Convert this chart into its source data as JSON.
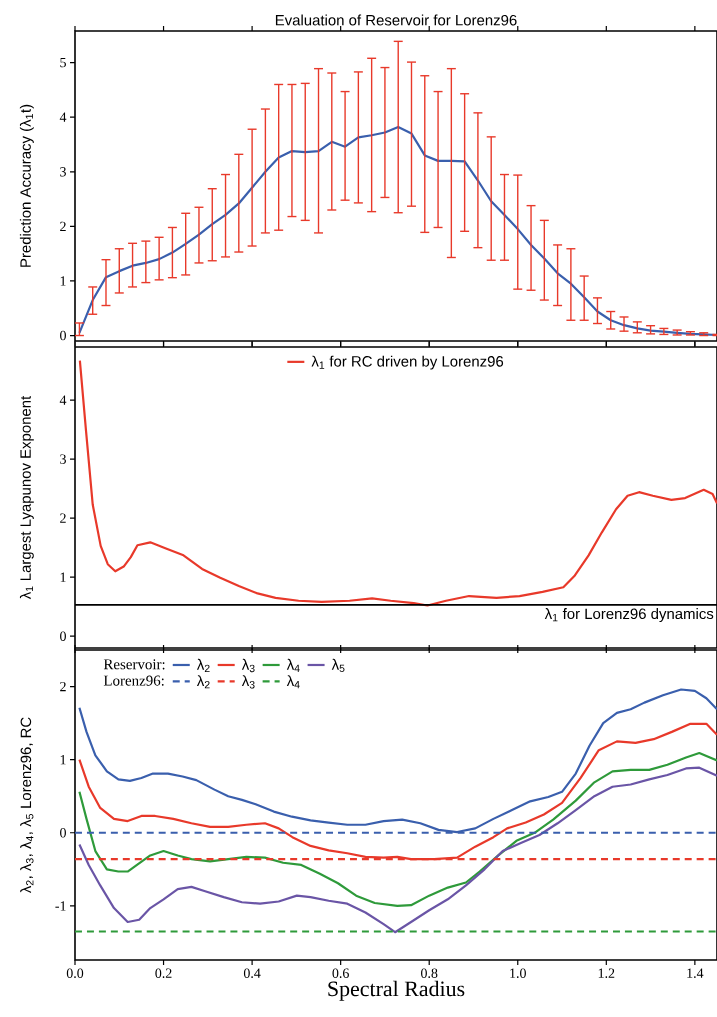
{
  "chart_data": [
    {
      "type": "line",
      "title": "Evaluation of Reservoir for Lorenz96",
      "ylabel": "Prediction Accuracy (λ$_{1}$t)",
      "x": [
        0.01,
        0.04,
        0.07,
        0.1,
        0.13,
        0.16,
        0.19,
        0.22,
        0.25,
        0.28,
        0.31,
        0.34,
        0.37,
        0.4,
        0.43,
        0.46,
        0.49,
        0.52,
        0.55,
        0.58,
        0.61,
        0.64,
        0.67,
        0.7,
        0.73,
        0.76,
        0.79,
        0.82,
        0.85,
        0.88,
        0.91,
        0.94,
        0.97,
        1.0,
        1.03,
        1.06,
        1.09,
        1.12,
        1.15,
        1.18,
        1.21,
        1.24,
        1.27,
        1.3,
        1.33,
        1.36,
        1.39,
        1.42,
        1.45
      ],
      "series": [
        {
          "color": "#3a5fad",
          "values": [
            0.05,
            0.65,
            1.07,
            1.18,
            1.28,
            1.33,
            1.4,
            1.52,
            1.68,
            1.85,
            2.04,
            2.21,
            2.42,
            2.71,
            3.0,
            3.26,
            3.38,
            3.36,
            3.38,
            3.55,
            3.46,
            3.63,
            3.67,
            3.72,
            3.82,
            3.7,
            3.3,
            3.2,
            3.2,
            3.19,
            2.84,
            2.46,
            2.21,
            1.95,
            1.66,
            1.41,
            1.14,
            0.95,
            0.7,
            0.44,
            0.28,
            0.19,
            0.13,
            0.09,
            0.07,
            0.05,
            0.03,
            0.02,
            0.01
          ],
          "errors": [
            [
              0.0,
              0.23
            ],
            [
              0.39,
              0.89
            ],
            [
              0.55,
              1.39
            ],
            [
              0.78,
              1.59
            ],
            [
              0.89,
              1.69
            ],
            [
              0.97,
              1.73
            ],
            [
              1.02,
              1.8
            ],
            [
              1.06,
              1.98
            ],
            [
              1.11,
              2.24
            ],
            [
              1.33,
              2.35
            ],
            [
              1.37,
              2.69
            ],
            [
              1.44,
              2.95
            ],
            [
              1.53,
              3.32
            ],
            [
              1.64,
              3.78
            ],
            [
              1.88,
              4.15
            ],
            [
              1.93,
              4.6
            ],
            [
              2.18,
              4.6
            ],
            [
              2.11,
              4.62
            ],
            [
              1.88,
              4.89
            ],
            [
              2.3,
              4.81
            ],
            [
              2.48,
              4.47
            ],
            [
              2.43,
              4.83
            ],
            [
              2.27,
              5.08
            ],
            [
              2.53,
              4.91
            ],
            [
              2.25,
              5.39
            ],
            [
              2.37,
              5.01
            ],
            [
              1.89,
              4.76
            ],
            [
              1.98,
              4.47
            ],
            [
              1.43,
              4.89
            ],
            [
              1.91,
              4.43
            ],
            [
              1.61,
              4.08
            ],
            [
              1.38,
              3.64
            ],
            [
              1.38,
              2.95
            ],
            [
              0.85,
              2.94
            ],
            [
              0.83,
              2.38
            ],
            [
              0.65,
              2.11
            ],
            [
              0.55,
              1.66
            ],
            [
              0.28,
              1.59
            ],
            [
              0.28,
              1.09
            ],
            [
              0.22,
              0.69
            ],
            [
              0.12,
              0.44
            ],
            [
              0.08,
              0.34
            ],
            [
              0.05,
              0.25
            ],
            [
              0.03,
              0.18
            ],
            [
              0.02,
              0.13
            ],
            [
              0.01,
              0.1
            ],
            [
              0.01,
              0.07
            ],
            [
              0.0,
              0.05
            ],
            [
              0.0,
              0.02
            ]
          ]
        }
      ],
      "xlim": [
        0,
        1.45
      ],
      "ylim": [
        -0.1,
        5.58
      ],
      "xticks": [
        0,
        0.2,
        0.4,
        0.6,
        0.8,
        1,
        1.2,
        1.4
      ],
      "yticks": [
        0,
        1,
        2,
        3,
        4,
        5
      ],
      "tick_labels": "y"
    },
    {
      "type": "line",
      "ylabel": "λ$_{1}$ Largest Lyapunov Exponent",
      "series": [
        {
          "name": "λ$_{1}$ for RC driven by Lorenz96",
          "color": "#e8392a",
          "x": [
            0.011,
            0.025,
            0.04,
            0.058,
            0.074,
            0.091,
            0.11,
            0.126,
            0.141,
            0.17,
            0.204,
            0.245,
            0.287,
            0.328,
            0.37,
            0.41,
            0.453,
            0.505,
            0.557,
            0.62,
            0.671,
            0.713,
            0.765,
            0.796,
            0.838,
            0.89,
            0.952,
            1.004,
            1.056,
            1.103,
            1.129,
            1.16,
            1.19,
            1.222,
            1.248,
            1.274,
            1.305,
            1.347,
            1.378,
            1.42,
            1.44,
            1.45
          ],
          "values": [
            4.67,
            3.47,
            2.23,
            1.53,
            1.22,
            1.1,
            1.18,
            1.34,
            1.54,
            1.59,
            1.49,
            1.37,
            1.14,
            0.99,
            0.85,
            0.73,
            0.65,
            0.6,
            0.58,
            0.6,
            0.64,
            0.6,
            0.56,
            0.52,
            0.6,
            0.68,
            0.65,
            0.68,
            0.75,
            0.83,
            1.03,
            1.37,
            1.76,
            2.15,
            2.38,
            2.44,
            2.38,
            2.31,
            2.34,
            2.48,
            2.41,
            2.25
          ]
        }
      ],
      "ref_lines": [
        {
          "axis": "y",
          "value": 0.53,
          "label": "λ$_{1}$ for Lorenz96 dynamics",
          "color": "#000000"
        }
      ],
      "legend": "top",
      "xlim": [
        0,
        1.45
      ],
      "ylim": [
        -0.2,
        4.9
      ],
      "xticks": [
        0,
        0.2,
        0.4,
        0.6,
        0.8,
        1,
        1.2,
        1.4
      ],
      "yticks": [
        0,
        1,
        2,
        3,
        4
      ],
      "tick_labels": "y"
    },
    {
      "type": "line",
      "xlabel": "Spectral Radius",
      "ylabel": "λ$_{2}$, λ$_{3}$, λ$_{4}$, λ$_{5}$ Lorenz96, RC",
      "annotations": [
        "Reservoir:",
        "Lorenz96:"
      ],
      "series": [
        {
          "name": "λ$_{2}$",
          "color": "#3a5fad",
          "line_style": "solid",
          "x": [
            0.01,
            0.026,
            0.046,
            0.072,
            0.098,
            0.124,
            0.15,
            0.176,
            0.21,
            0.243,
            0.274,
            0.315,
            0.346,
            0.377,
            0.408,
            0.449,
            0.49,
            0.532,
            0.573,
            0.615,
            0.656,
            0.697,
            0.739,
            0.78,
            0.821,
            0.863,
            0.904,
            0.945,
            0.987,
            1.028,
            1.069,
            1.1,
            1.131,
            1.162,
            1.193,
            1.224,
            1.255,
            1.286,
            1.328,
            1.369,
            1.4,
            1.426,
            1.45
          ],
          "values": [
            1.71,
            1.38,
            1.06,
            0.84,
            0.73,
            0.71,
            0.75,
            0.81,
            0.81,
            0.77,
            0.72,
            0.59,
            0.5,
            0.45,
            0.39,
            0.29,
            0.22,
            0.17,
            0.14,
            0.11,
            0.11,
            0.16,
            0.18,
            0.13,
            0.04,
            0.01,
            0.06,
            0.19,
            0.31,
            0.43,
            0.49,
            0.56,
            0.81,
            1.19,
            1.5,
            1.64,
            1.69,
            1.78,
            1.88,
            1.96,
            1.94,
            1.84,
            1.69
          ]
        },
        {
          "name": "λ$_{3}$",
          "color": "#e8392a",
          "line_style": "solid",
          "x": [
            0.01,
            0.031,
            0.057,
            0.088,
            0.119,
            0.15,
            0.181,
            0.222,
            0.263,
            0.305,
            0.346,
            0.387,
            0.429,
            0.46,
            0.491,
            0.532,
            0.573,
            0.615,
            0.656,
            0.697,
            0.728,
            0.759,
            0.811,
            0.863,
            0.904,
            0.945,
            0.976,
            1.018,
            1.059,
            1.1,
            1.142,
            1.183,
            1.224,
            1.266,
            1.307,
            1.348,
            1.39,
            1.426,
            1.45
          ],
          "values": [
            1.0,
            0.63,
            0.34,
            0.19,
            0.16,
            0.23,
            0.23,
            0.19,
            0.13,
            0.08,
            0.08,
            0.11,
            0.13,
            0.06,
            -0.06,
            -0.18,
            -0.24,
            -0.28,
            -0.33,
            -0.34,
            -0.33,
            -0.36,
            -0.36,
            -0.34,
            -0.19,
            -0.06,
            0.06,
            0.14,
            0.25,
            0.41,
            0.75,
            1.13,
            1.25,
            1.23,
            1.28,
            1.38,
            1.49,
            1.49,
            1.34
          ]
        },
        {
          "name": "λ$_{4}$",
          "color": "#2e9a3a",
          "line_style": "solid",
          "x": [
            0.01,
            0.026,
            0.046,
            0.072,
            0.098,
            0.119,
            0.14,
            0.17,
            0.2,
            0.232,
            0.263,
            0.305,
            0.346,
            0.387,
            0.429,
            0.47,
            0.511,
            0.553,
            0.594,
            0.635,
            0.677,
            0.728,
            0.759,
            0.8,
            0.842,
            0.883,
            0.914,
            0.956,
            0.997,
            1.038,
            1.08,
            1.131,
            1.173,
            1.214,
            1.255,
            1.297,
            1.338,
            1.38,
            1.41,
            1.45
          ],
          "values": [
            0.56,
            0.19,
            -0.25,
            -0.5,
            -0.53,
            -0.53,
            -0.44,
            -0.31,
            -0.25,
            -0.31,
            -0.36,
            -0.39,
            -0.36,
            -0.33,
            -0.34,
            -0.41,
            -0.44,
            -0.56,
            -0.69,
            -0.86,
            -0.96,
            -1.0,
            -0.99,
            -0.86,
            -0.75,
            -0.68,
            -0.53,
            -0.31,
            -0.11,
            0.0,
            0.18,
            0.44,
            0.69,
            0.84,
            0.86,
            0.86,
            0.93,
            1.03,
            1.09,
            0.99
          ]
        },
        {
          "name": "λ$_{5}$",
          "color": "#6a55a6",
          "line_style": "solid",
          "x": [
            0.01,
            0.031,
            0.057,
            0.088,
            0.119,
            0.145,
            0.17,
            0.2,
            0.232,
            0.263,
            0.294,
            0.336,
            0.377,
            0.418,
            0.46,
            0.501,
            0.532,
            0.573,
            0.615,
            0.656,
            0.697,
            0.723,
            0.759,
            0.8,
            0.842,
            0.883,
            0.925,
            0.966,
            1.007,
            1.049,
            1.09,
            1.131,
            1.173,
            1.214,
            1.255,
            1.297,
            1.338,
            1.38,
            1.41,
            1.45
          ],
          "values": [
            -0.16,
            -0.44,
            -0.72,
            -1.03,
            -1.22,
            -1.19,
            -1.03,
            -0.91,
            -0.77,
            -0.74,
            -0.8,
            -0.88,
            -0.95,
            -0.97,
            -0.94,
            -0.86,
            -0.88,
            -0.93,
            -0.97,
            -1.09,
            -1.25,
            -1.36,
            -1.22,
            -1.06,
            -0.91,
            -0.72,
            -0.5,
            -0.25,
            -0.14,
            -0.03,
            0.13,
            0.31,
            0.5,
            0.63,
            0.66,
            0.73,
            0.79,
            0.88,
            0.89,
            0.78
          ]
        },
        {
          "name": "λ$_{2}$",
          "color": "#3a5fad",
          "line_style": "dashed",
          "x": [
            0,
            1.45
          ],
          "values": [
            0,
            0
          ]
        },
        {
          "name": "λ$_{3}$",
          "color": "#e8392a",
          "line_style": "dashed",
          "x": [
            0,
            1.45
          ],
          "values": [
            -0.36,
            -0.36
          ]
        },
        {
          "name": "λ$_{4}$",
          "color": "#2e9a3a",
          "line_style": "dashed",
          "x": [
            0,
            1.45
          ],
          "values": [
            -1.35,
            -1.35
          ]
        }
      ],
      "legend": "top left",
      "xlim": [
        0,
        1.45
      ],
      "ylim": [
        -1.74,
        2.5
      ],
      "xticks": [
        {
          "value": 0,
          "label": "0.0"
        },
        0.2,
        0.4,
        0.6,
        0.8,
        {
          "value": 1,
          "label": "1.0"
        },
        1.2,
        1.4
      ],
      "yticks": [
        -1,
        0,
        1,
        2
      ]
    }
  ]
}
